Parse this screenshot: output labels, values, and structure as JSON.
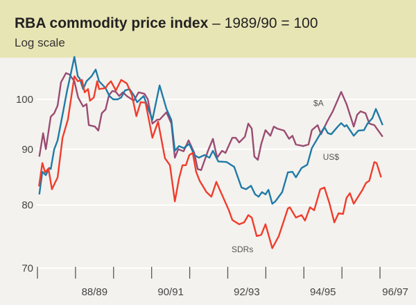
{
  "chart_data": {
    "type": "line",
    "title": "RBA commodity price index",
    "title_suffix": "– 1989/90 = 100",
    "subtitle": "Log scale",
    "xlabel": "",
    "ylabel": "",
    "yscale": "log",
    "ylim": [
      70,
      112
    ],
    "xlim": [
      1987.5,
      1996.6
    ],
    "yticks": [
      100,
      90,
      80,
      70
    ],
    "ytick_labels": [
      "100",
      "90",
      "80",
      "70"
    ],
    "xticks": [
      1987.5,
      1988.5,
      1989.5,
      1990.5,
      1991.5,
      1992.5,
      1993.5,
      1994.5,
      1995.5,
      1996.5
    ],
    "xtick_labels": [
      {
        "label": "88/89",
        "x": 1989.0
      },
      {
        "label": "90/91",
        "x": 1991.0
      },
      {
        "label": "92/93",
        "x": 1993.0
      },
      {
        "label": "94/95",
        "x": 1995.0
      },
      {
        "label": "96/97",
        "x": 1996.9
      }
    ],
    "grid": true,
    "series": [
      {
        "name": "$A",
        "color": "#9a4b72",
        "label_at": [
          1994.75,
          98.6
        ],
        "x": [
          1987.55,
          1987.65,
          1987.72,
          1987.85,
          1987.94,
          1988.03,
          1988.12,
          1988.25,
          1988.34,
          1988.47,
          1988.57,
          1988.7,
          1988.79,
          1988.85,
          1989.01,
          1989.1,
          1989.19,
          1989.29,
          1989.38,
          1989.47,
          1989.56,
          1989.65,
          1989.74,
          1989.85,
          1990.03,
          1990.16,
          1990.31,
          1990.4,
          1990.52,
          1990.65,
          1990.71,
          1990.89,
          1991.02,
          1991.11,
          1991.2,
          1991.34,
          1991.47,
          1991.62,
          1991.71,
          1991.8,
          1991.98,
          1992.11,
          1992.22,
          1992.35,
          1992.44,
          1992.62,
          1992.71,
          1992.8,
          1992.95,
          1993.04,
          1993.13,
          1993.2,
          1993.29,
          1993.38,
          1993.49,
          1993.62,
          1993.71,
          1993.8,
          1993.98,
          1994.11,
          1994.2,
          1994.29,
          1994.48,
          1994.62,
          1994.71,
          1994.86,
          1994.95,
          1995.11,
          1995.26,
          1995.48,
          1995.62,
          1995.81,
          1995.9,
          1995.99,
          1996.12,
          1996.22,
          1996.35,
          1996.57
        ],
        "values": [
          88.6,
          93.1,
          90.0,
          96.4,
          97.1,
          98.7,
          103.7,
          105.7,
          105.4,
          103.9,
          100.4,
          98.5,
          99.0,
          94.7,
          94.4,
          93.6,
          97.1,
          97.9,
          100.9,
          101.8,
          101.6,
          100.7,
          101.5,
          100.7,
          99.7,
          101.5,
          101.2,
          100.0,
          95.0,
          95.8,
          95.8,
          97.3,
          95.0,
          88.4,
          90.0,
          89.6,
          91.7,
          89.3,
          86.3,
          86.1,
          89.7,
          92.0,
          88.4,
          89.7,
          89.3,
          92.2,
          92.2,
          91.3,
          92.4,
          95.0,
          94.0,
          88.6,
          88.0,
          91.0,
          93.7,
          92.6,
          94.4,
          94.0,
          93.6,
          92.0,
          92.6,
          90.9,
          90.6,
          90.9,
          93.7,
          94.7,
          92.9,
          95.4,
          97.5,
          101.6,
          99.0,
          94.4,
          96.8,
          97.5,
          97.1,
          95.0,
          94.7,
          92.4
        ]
      },
      {
        "name": "US$",
        "color": "#1f7aa6",
        "label_at": [
          1995.0,
          88.0
        ],
        "x": [
          1987.55,
          1987.63,
          1987.72,
          1987.81,
          1987.85,
          1987.94,
          1988.03,
          1988.16,
          1988.28,
          1988.37,
          1988.47,
          1988.56,
          1988.61,
          1988.7,
          1988.79,
          1988.92,
          1989.03,
          1989.12,
          1989.29,
          1989.39,
          1989.49,
          1989.61,
          1989.7,
          1989.8,
          1989.92,
          1990.03,
          1990.12,
          1990.29,
          1990.4,
          1990.52,
          1990.71,
          1990.89,
          1991.02,
          1991.11,
          1991.22,
          1991.34,
          1991.49,
          1991.62,
          1991.74,
          1991.89,
          1992.02,
          1992.11,
          1992.25,
          1992.47,
          1992.58,
          1992.67,
          1992.86,
          1992.98,
          1993.11,
          1993.22,
          1993.31,
          1993.4,
          1993.49,
          1993.57,
          1993.67,
          1993.75,
          1993.93,
          1994.08,
          1994.2,
          1994.29,
          1994.44,
          1994.59,
          1994.71,
          1994.9,
          1995.04,
          1995.13,
          1995.22,
          1995.39,
          1995.48,
          1995.57,
          1995.62,
          1995.81,
          1995.93,
          1996.08,
          1996.17,
          1996.3,
          1996.39,
          1996.44,
          1996.57
        ],
        "values": [
          81.8,
          85.8,
          85.2,
          86.5,
          86.3,
          90.0,
          91.7,
          96.8,
          101.9,
          105.3,
          109.4,
          105.0,
          104.5,
          102.2,
          103.9,
          105.0,
          106.5,
          103.9,
          102.4,
          100.7,
          100.0,
          100.0,
          100.4,
          101.9,
          102.2,
          100.9,
          99.4,
          100.7,
          98.3,
          95.8,
          103.0,
          98.0,
          95.7,
          89.7,
          90.6,
          90.2,
          91.0,
          88.9,
          88.4,
          88.9,
          88.4,
          89.7,
          87.7,
          87.6,
          87.1,
          86.7,
          83.0,
          82.7,
          83.3,
          81.8,
          81.4,
          82.2,
          81.8,
          82.6,
          80.2,
          80.6,
          82.2,
          85.7,
          85.8,
          84.8,
          86.5,
          87.1,
          90.2,
          92.6,
          94.3,
          93.1,
          92.9,
          94.4,
          95.1,
          94.4,
          94.7,
          92.6,
          93.6,
          93.7,
          95.0,
          96.1,
          98.0,
          97.1,
          94.7
        ]
      },
      {
        "name": "SDRs",
        "color": "#f03c2c",
        "label_at": [
          1992.6,
          72.4
        ],
        "x": [
          1987.54,
          1987.63,
          1987.7,
          1987.79,
          1987.88,
          1988.03,
          1988.16,
          1988.3,
          1988.47,
          1988.56,
          1988.67,
          1988.74,
          1988.83,
          1988.88,
          1988.98,
          1989.07,
          1989.12,
          1989.29,
          1989.34,
          1989.43,
          1989.56,
          1989.7,
          1989.85,
          1989.98,
          1990.1,
          1990.21,
          1990.34,
          1990.52,
          1990.67,
          1990.85,
          1990.98,
          1991.11,
          1991.22,
          1991.31,
          1991.4,
          1991.49,
          1991.58,
          1991.67,
          1991.76,
          1991.94,
          1992.07,
          1992.2,
          1992.29,
          1992.53,
          1992.62,
          1992.8,
          1992.93,
          1993.04,
          1993.13,
          1993.26,
          1993.38,
          1993.49,
          1993.58,
          1993.67,
          1993.84,
          1993.98,
          1994.08,
          1994.13,
          1994.29,
          1994.44,
          1994.53,
          1994.66,
          1994.77,
          1994.93,
          1995.04,
          1995.17,
          1995.3,
          1995.41,
          1995.53,
          1995.62,
          1995.71,
          1995.81,
          1996.04,
          1996.13,
          1996.22,
          1996.35,
          1996.41,
          1996.53
        ],
        "values": [
          83.2,
          87.4,
          85.7,
          86.4,
          82.7,
          84.8,
          92.2,
          95.8,
          105.0,
          103.9,
          104.2,
          101.5,
          102.2,
          99.7,
          100.4,
          103.9,
          102.2,
          102.4,
          103.1,
          103.9,
          101.9,
          104.2,
          103.4,
          100.9,
          96.5,
          99.4,
          99.3,
          92.2,
          95.4,
          88.3,
          87.0,
          80.6,
          84.6,
          87.0,
          87.0,
          88.9,
          89.3,
          85.8,
          84.2,
          82.2,
          81.4,
          84.0,
          82.6,
          79.1,
          77.5,
          76.8,
          77.1,
          78.3,
          77.9,
          74.9,
          75.1,
          76.8,
          74.9,
          73.0,
          74.9,
          77.5,
          79.4,
          79.6,
          77.9,
          78.3,
          77.4,
          79.6,
          79.1,
          82.7,
          83.0,
          80.3,
          77.1,
          78.6,
          78.5,
          81.2,
          82.0,
          80.2,
          82.6,
          83.8,
          84.2,
          87.6,
          87.4,
          84.8
        ]
      }
    ]
  }
}
